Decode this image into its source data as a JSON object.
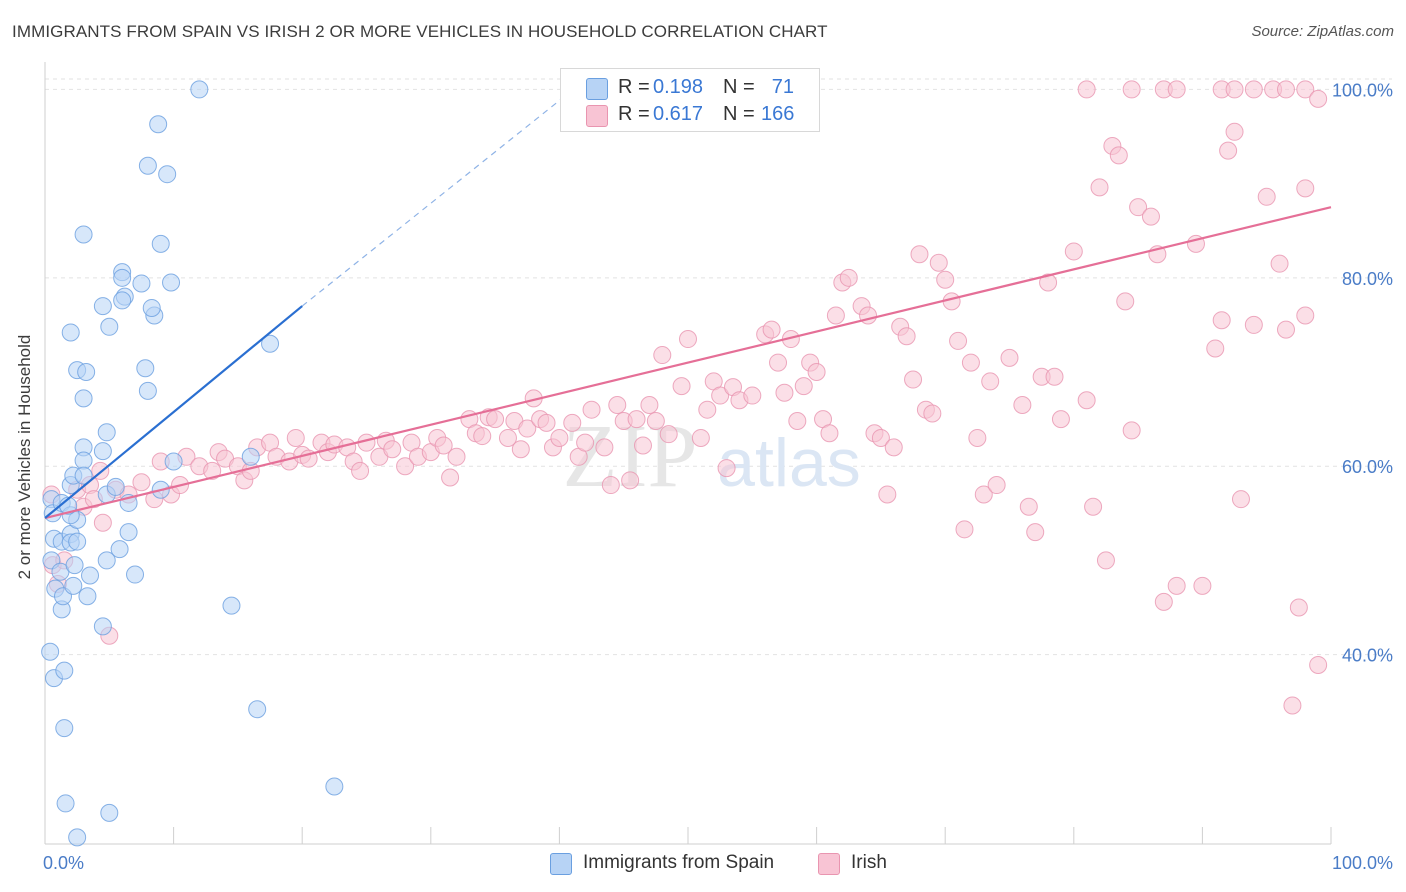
{
  "title": "IMMIGRANTS FROM SPAIN VS IRISH 2 OR MORE VEHICLES IN HOUSEHOLD CORRELATION CHART",
  "source": "Source: ZipAtlas.com",
  "watermark": {
    "zip": "ZIP",
    "atlas": "atlas"
  },
  "colors": {
    "blue_fill": "#b7d3f5",
    "blue_stroke": "#6a9fe0",
    "blue_line": "#2a6fd1",
    "pink_fill": "#f8c4d4",
    "pink_stroke": "#e995b0",
    "pink_line": "#e56f97",
    "tick_text": "#4a7cc7",
    "grid": "#e2e2e2"
  },
  "legend_top": [
    {
      "r_label": "R =",
      "r_value": "0.198",
      "n_label": "N =",
      "n_value": "71"
    },
    {
      "r_label": "R =",
      "r_value": "0.617",
      "n_label": "N =",
      "n_value": "166"
    }
  ],
  "legend_bottom": [
    "Immigrants from Spain",
    "Irish"
  ],
  "chart_data": {
    "type": "scatter",
    "title": "IMMIGRANTS FROM SPAIN VS IRISH 2 OR MORE VEHICLES IN HOUSEHOLD CORRELATION CHART",
    "xlabel": "",
    "ylabel": "2 or more Vehicles in Household",
    "xlim": [
      0,
      100
    ],
    "ylim": [
      20,
      101
    ],
    "x_tick_labels": [
      "0.0%",
      "100.0%"
    ],
    "y_ticks": [
      40,
      60,
      80,
      100
    ],
    "y_tick_labels": [
      "40.0%",
      "60.0%",
      "80.0%",
      "100.0%"
    ],
    "grid": true,
    "legend_position": "top-center",
    "series": [
      {
        "name": "Immigrants from Spain",
        "R": 0.198,
        "N": 71,
        "trend": {
          "x": [
            0,
            20
          ],
          "y": [
            54.5,
            77.0
          ],
          "dashed_extension": {
            "x": [
              20,
              42
            ],
            "y": [
              77.0,
              101.0
            ]
          }
        },
        "points": [
          [
            0.5,
            56.5
          ],
          [
            0.6,
            55.0
          ],
          [
            0.7,
            52.3
          ],
          [
            0.5,
            50.0
          ],
          [
            0.8,
            47.0
          ],
          [
            0.4,
            40.3
          ],
          [
            0.7,
            37.5
          ],
          [
            1.3,
            56.1
          ],
          [
            1.3,
            52.0
          ],
          [
            1.2,
            48.8
          ],
          [
            1.3,
            44.8
          ],
          [
            1.4,
            46.2
          ],
          [
            1.5,
            38.3
          ],
          [
            1.5,
            32.2
          ],
          [
            1.6,
            24.2
          ],
          [
            2.0,
            74.2
          ],
          [
            2.0,
            58.0
          ],
          [
            2.0,
            52.8
          ],
          [
            2.0,
            51.9
          ],
          [
            2.2,
            59.0
          ],
          [
            2.2,
            47.3
          ],
          [
            2.3,
            49.5
          ],
          [
            2.5,
            70.2
          ],
          [
            2.5,
            54.3
          ],
          [
            2.5,
            20.6
          ],
          [
            2.5,
            52.0
          ],
          [
            2.0,
            54.8
          ],
          [
            1.8,
            55.8
          ],
          [
            3.0,
            84.6
          ],
          [
            3.0,
            67.2
          ],
          [
            3.0,
            62.0
          ],
          [
            3.0,
            60.6
          ],
          [
            3.0,
            59.0
          ],
          [
            3.2,
            70.0
          ],
          [
            3.3,
            46.2
          ],
          [
            4.5,
            77.0
          ],
          [
            4.5,
            61.6
          ],
          [
            4.8,
            63.6
          ],
          [
            4.8,
            57.0
          ],
          [
            4.8,
            50.0
          ],
          [
            5.0,
            74.8
          ],
          [
            5.0,
            23.2
          ],
          [
            3.5,
            48.4
          ],
          [
            6.0,
            80.6
          ],
          [
            6.0,
            80.0
          ],
          [
            6.2,
            78.0
          ],
          [
            6.0,
            77.6
          ],
          [
            6.5,
            53.0
          ],
          [
            5.5,
            57.8
          ],
          [
            4.5,
            43.0
          ],
          [
            5.8,
            51.2
          ],
          [
            6.5,
            56.1
          ],
          [
            7.0,
            48.5
          ],
          [
            7.5,
            79.4
          ],
          [
            8.0,
            91.9
          ],
          [
            8.8,
            96.3
          ],
          [
            9.0,
            83.6
          ],
          [
            8.5,
            76.0
          ],
          [
            8.3,
            76.8
          ],
          [
            9.5,
            91.0
          ],
          [
            7.8,
            70.4
          ],
          [
            8.0,
            68.0
          ],
          [
            9.0,
            57.5
          ],
          [
            9.8,
            79.5
          ],
          [
            10.0,
            60.5
          ],
          [
            12.0,
            100.0
          ],
          [
            14.5,
            45.2
          ],
          [
            16.5,
            34.2
          ],
          [
            16.0,
            61.0
          ],
          [
            17.5,
            73.0
          ],
          [
            22.5,
            26.0
          ]
        ]
      },
      {
        "name": "Irish",
        "R": 0.617,
        "N": 166,
        "trend": {
          "x": [
            0,
            100
          ],
          "y": [
            54.5,
            87.5
          ]
        },
        "points": [
          [
            0.5,
            57.0
          ],
          [
            0.6,
            49.5
          ],
          [
            1.0,
            47.5
          ],
          [
            1.5,
            50.0
          ],
          [
            2.5,
            57.5
          ],
          [
            3.0,
            55.7
          ],
          [
            3.5,
            58.0
          ],
          [
            3.8,
            56.5
          ],
          [
            4.5,
            54.0
          ],
          [
            4.3,
            59.5
          ],
          [
            5.0,
            42.0
          ],
          [
            5.5,
            57.5
          ],
          [
            6.5,
            57.0
          ],
          [
            7.5,
            58.3
          ],
          [
            8.5,
            56.5
          ],
          [
            9.0,
            60.5
          ],
          [
            9.8,
            57.0
          ],
          [
            10.5,
            58.0
          ],
          [
            11.0,
            61.0
          ],
          [
            12.0,
            60.0
          ],
          [
            13.0,
            59.5
          ],
          [
            13.5,
            61.5
          ],
          [
            14.0,
            60.8
          ],
          [
            15.0,
            60.0
          ],
          [
            15.5,
            58.5
          ],
          [
            16.0,
            59.5
          ],
          [
            16.5,
            62.0
          ],
          [
            17.5,
            62.5
          ],
          [
            18.0,
            61.0
          ],
          [
            19.0,
            60.5
          ],
          [
            19.5,
            63.0
          ],
          [
            20.0,
            61.2
          ],
          [
            20.5,
            60.8
          ],
          [
            21.5,
            62.5
          ],
          [
            22.0,
            61.5
          ],
          [
            22.5,
            62.3
          ],
          [
            23.5,
            62.0
          ],
          [
            24.0,
            60.5
          ],
          [
            24.5,
            59.5
          ],
          [
            25.0,
            62.5
          ],
          [
            26.0,
            61.0
          ],
          [
            26.5,
            62.7
          ],
          [
            27.0,
            61.8
          ],
          [
            28.0,
            60.0
          ],
          [
            28.5,
            62.5
          ],
          [
            29.0,
            61.0
          ],
          [
            30.0,
            61.5
          ],
          [
            30.5,
            63.0
          ],
          [
            31.0,
            62.2
          ],
          [
            31.5,
            58.8
          ],
          [
            32.0,
            61.0
          ],
          [
            33.0,
            65.0
          ],
          [
            33.5,
            63.5
          ],
          [
            34.0,
            63.2
          ],
          [
            34.5,
            65.2
          ],
          [
            35.0,
            65.0
          ],
          [
            36.0,
            63.0
          ],
          [
            36.5,
            64.8
          ],
          [
            37.0,
            61.8
          ],
          [
            37.5,
            64.0
          ],
          [
            38.0,
            67.2
          ],
          [
            38.5,
            65.0
          ],
          [
            39.0,
            64.6
          ],
          [
            39.5,
            62.0
          ],
          [
            40.0,
            63.0
          ],
          [
            41.0,
            64.6
          ],
          [
            41.5,
            61.0
          ],
          [
            42.0,
            62.5
          ],
          [
            42.5,
            66.0
          ],
          [
            43.5,
            62.0
          ],
          [
            44.0,
            58.0
          ],
          [
            44.5,
            66.5
          ],
          [
            45.0,
            64.8
          ],
          [
            45.5,
            58.5
          ],
          [
            46.0,
            65.0
          ],
          [
            46.5,
            62.2
          ],
          [
            47.0,
            66.5
          ],
          [
            47.5,
            64.8
          ],
          [
            48.0,
            71.8
          ],
          [
            48.5,
            63.4
          ],
          [
            49.5,
            68.5
          ],
          [
            50.0,
            73.5
          ],
          [
            51.0,
            63.0
          ],
          [
            51.5,
            66.0
          ],
          [
            52.0,
            69.0
          ],
          [
            52.5,
            67.5
          ],
          [
            53.0,
            59.8
          ],
          [
            53.5,
            68.4
          ],
          [
            54.0,
            67.0
          ],
          [
            55.0,
            67.5
          ],
          [
            56.0,
            74.0
          ],
          [
            56.5,
            74.5
          ],
          [
            57.0,
            71.0
          ],
          [
            57.5,
            67.8
          ],
          [
            58.0,
            73.5
          ],
          [
            58.5,
            64.8
          ],
          [
            59.0,
            68.5
          ],
          [
            59.5,
            71.0
          ],
          [
            60.0,
            70.0
          ],
          [
            60.5,
            65.0
          ],
          [
            61.0,
            63.5
          ],
          [
            61.5,
            76.0
          ],
          [
            62.0,
            79.5
          ],
          [
            62.5,
            80.0
          ],
          [
            63.5,
            77.0
          ],
          [
            64.0,
            76.0
          ],
          [
            64.5,
            63.5
          ],
          [
            65.0,
            63.0
          ],
          [
            65.5,
            57.0
          ],
          [
            66.0,
            62.0
          ],
          [
            66.5,
            74.8
          ],
          [
            67.0,
            73.8
          ],
          [
            67.5,
            69.2
          ],
          [
            68.0,
            82.5
          ],
          [
            68.5,
            66.0
          ],
          [
            69.0,
            65.6
          ],
          [
            69.5,
            81.6
          ],
          [
            70.0,
            79.8
          ],
          [
            70.5,
            77.5
          ],
          [
            71.0,
            73.3
          ],
          [
            71.5,
            53.3
          ],
          [
            72.0,
            71.0
          ],
          [
            72.5,
            63.0
          ],
          [
            73.0,
            57.0
          ],
          [
            73.5,
            69.0
          ],
          [
            74.0,
            58.0
          ],
          [
            75.0,
            71.5
          ],
          [
            76.0,
            66.5
          ],
          [
            76.5,
            55.7
          ],
          [
            77.0,
            53.0
          ],
          [
            77.5,
            69.5
          ],
          [
            78.0,
            79.5
          ],
          [
            78.5,
            69.5
          ],
          [
            79.0,
            65.0
          ],
          [
            80.0,
            82.8
          ],
          [
            81.0,
            67.0
          ],
          [
            81.5,
            55.7
          ],
          [
            82.0,
            89.6
          ],
          [
            82.5,
            50.0
          ],
          [
            83.0,
            94.0
          ],
          [
            83.5,
            93.0
          ],
          [
            84.0,
            77.5
          ],
          [
            84.5,
            63.8
          ],
          [
            85.0,
            87.5
          ],
          [
            86.0,
            86.5
          ],
          [
            86.5,
            82.5
          ],
          [
            87.0,
            45.6
          ],
          [
            88.0,
            47.3
          ],
          [
            89.5,
            83.6
          ],
          [
            90.0,
            47.3
          ],
          [
            91.0,
            72.5
          ],
          [
            91.5,
            75.5
          ],
          [
            92.0,
            93.5
          ],
          [
            92.5,
            95.5
          ],
          [
            93.0,
            56.5
          ],
          [
            94.0,
            75.0
          ],
          [
            95.0,
            88.6
          ],
          [
            96.5,
            74.5
          ],
          [
            96.0,
            81.5
          ],
          [
            98.0,
            89.5
          ],
          [
            97.5,
            45.0
          ],
          [
            98.0,
            76.0
          ],
          [
            99.0,
            38.9
          ],
          [
            97.0,
            34.6
          ],
          [
            81.0,
            100.0
          ],
          [
            84.5,
            100.0
          ],
          [
            87.0,
            100.0
          ],
          [
            91.5,
            100.0
          ],
          [
            92.5,
            100.0
          ],
          [
            94.0,
            100.0
          ],
          [
            95.5,
            100.0
          ],
          [
            96.5,
            100.0
          ],
          [
            98.0,
            100.0
          ],
          [
            99.0,
            99.0
          ],
          [
            88.0,
            100.0
          ]
        ]
      }
    ]
  }
}
